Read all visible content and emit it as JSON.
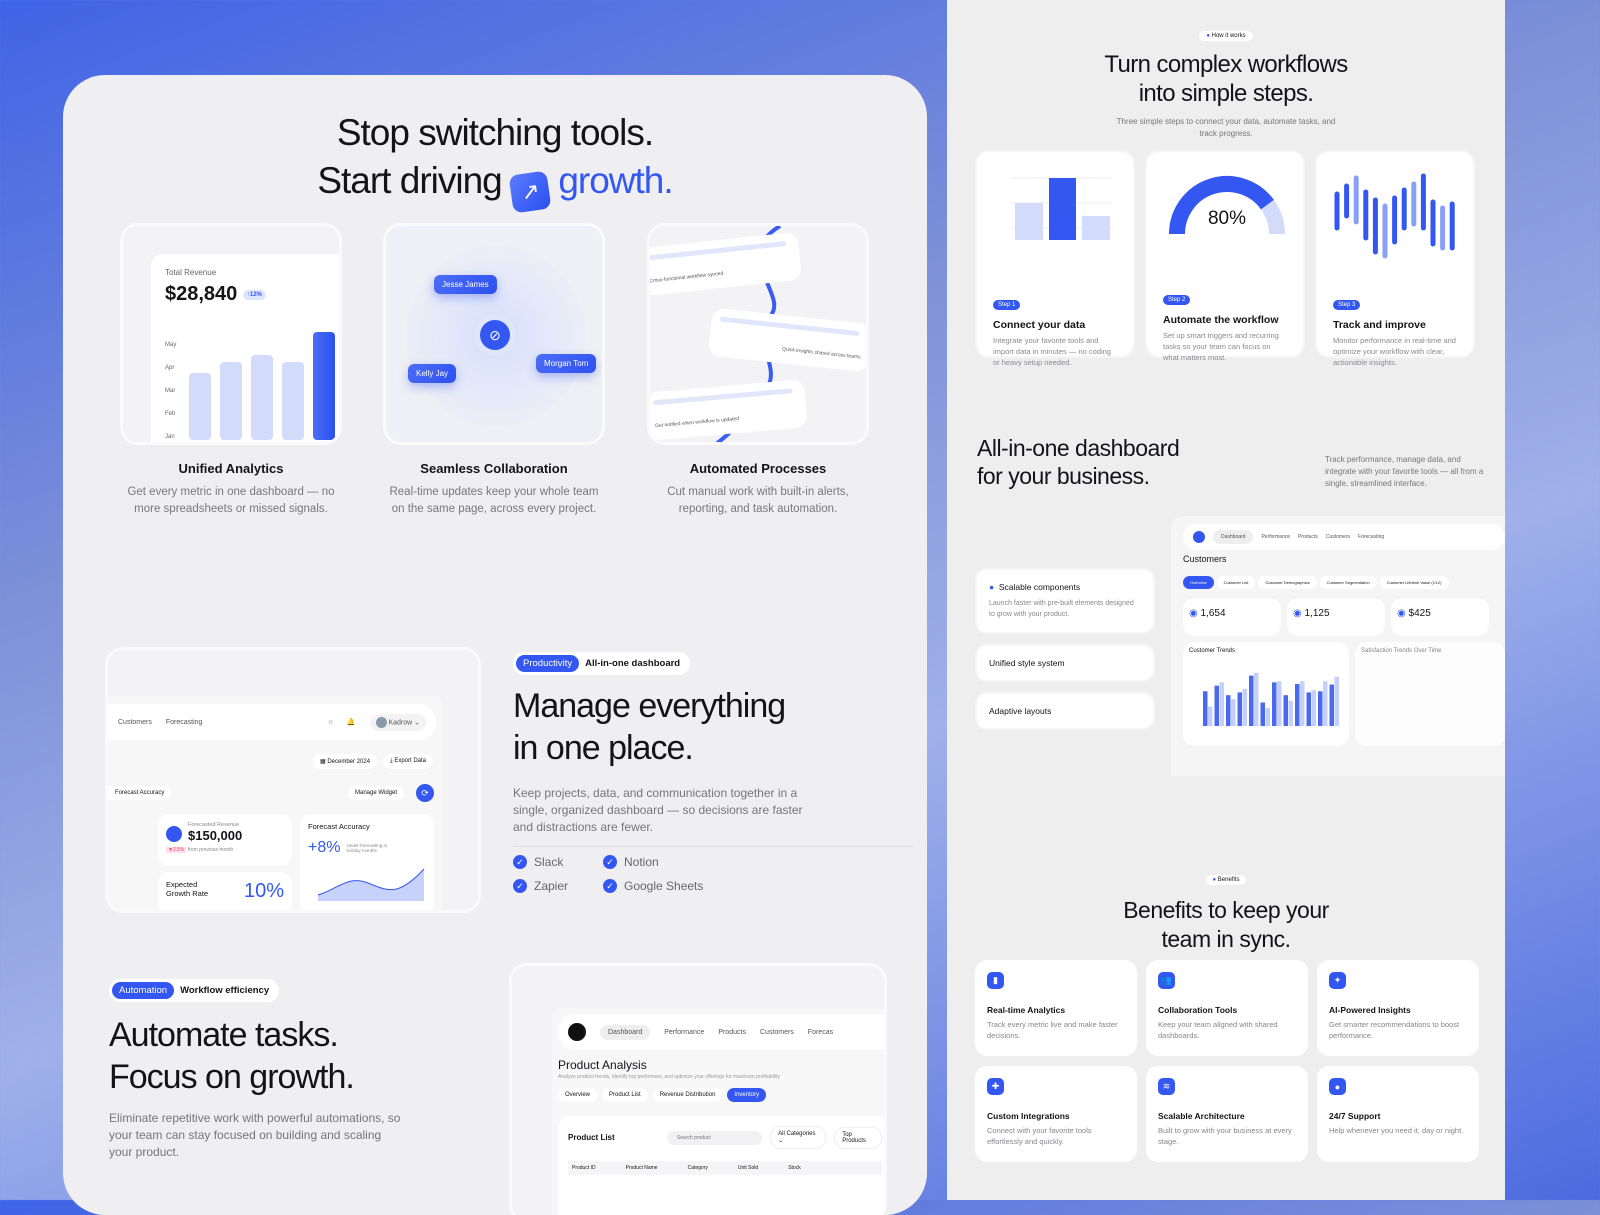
{
  "hero": {
    "line1": "Stop switching tools.",
    "line2_prefix": "Start driving",
    "line2_accent": "growth."
  },
  "features": [
    {
      "title": "Unified Analytics",
      "desc": "Get every metric in one dashboard — no more spreadsheets or missed signals."
    },
    {
      "title": "Seamless Collaboration",
      "desc": "Real-time updates keep your whole team on the same page, across every project."
    },
    {
      "title": "Automated Processes",
      "desc": "Cut manual work with built-in alerts, reporting, and task automation."
    }
  ],
  "revenue_card": {
    "label": "Total Revenue",
    "value": "$28,840",
    "badge": "↑12%",
    "months": [
      "May",
      "Apr",
      "Mar",
      "Feb",
      "Jan"
    ],
    "bars": [
      0.62,
      0.72,
      0.79,
      0.72,
      1.0
    ]
  },
  "collab": {
    "people": [
      "Jesse James",
      "Morgan Tom",
      "Kelly Jay"
    ]
  },
  "automation_cards": [
    "Cross-functional workflow synced",
    "Quick insights shared across teams",
    "Get notified when workflow is updated"
  ],
  "manage": {
    "badge": "Productivity",
    "badge_text": "All-in-one dashboard",
    "title_l1": "Manage everything",
    "title_l2": "in one place.",
    "desc": "Keep projects, data, and communication together in a single, organized dashboard — so decisions are faster and distractions are fewer.",
    "integrations": [
      "Slack",
      "Notion",
      "Zapier",
      "Google Sheets"
    ]
  },
  "dash1": {
    "nav": [
      "Customers",
      "Forecasting"
    ],
    "user": "Kadrow",
    "date": "December 2024",
    "export": "Export Data",
    "tab": "Forecast Accuracy",
    "manage_widget": "Manage Widget",
    "forecast_label": "Forecasted Revenue",
    "forecast_value": "$150,000",
    "forecast_change": "▼2.5%",
    "forecast_note": "from previous month",
    "accuracy_title": "Forecast Accuracy",
    "accuracy_value": "+8%",
    "accuracy_note": "Under-forecasting in holiday months",
    "growth_label": "Expected Growth Rate",
    "growth_value": "10%"
  },
  "automate": {
    "badge": "Automation",
    "badge_text": "Workflow efficiency",
    "title_l1": "Automate tasks.",
    "title_l2": "Focus on growth.",
    "desc": "Eliminate repetitive work with powerful automations, so your team can stay focused on building and scaling your product."
  },
  "dash2": {
    "nav": [
      "Dashboard",
      "Performance",
      "Products",
      "Customers",
      "Forecas"
    ],
    "title": "Product Analysis",
    "subtitle": "Analyze product trends, identify top performers, and optimize your offerings for maximum profitability",
    "tabs": [
      "Overview",
      "Product List",
      "Revenue Distribution",
      "Inventory"
    ],
    "list_title": "Product List",
    "search_placeholder": "Search product",
    "filter": "All Categories",
    "sort": "Top Products",
    "columns": [
      "Product ID",
      "Product Name",
      "Category",
      "Unit Sold",
      "Stock"
    ]
  },
  "how": {
    "badge": "How it works",
    "title_l1": "Turn complex workflows",
    "title_l2": "into simple steps.",
    "subtitle": "Three simple steps to connect your data, automate tasks, and track progress.",
    "steps": [
      {
        "badge": "Step 1",
        "title": "Connect your data",
        "desc": "Integrate your favorite tools and import data in minutes — no coding or heavy setup needed."
      },
      {
        "badge": "Step 2",
        "title": "Automate the workflow",
        "desc": "Set up smart triggers and recurring tasks so your team can focus on what matters most."
      },
      {
        "badge": "Step 3",
        "title": "Track and improve",
        "desc": "Monitor performance in real-time and optimize your workflow with clear, actionable insights."
      }
    ],
    "gauge": "80%",
    "gauge_value": 0.8
  },
  "allinone": {
    "title_l1": "All-in-one dashboard",
    "title_l2": "for your business.",
    "desc": "Track performance, manage data, and integrate with your favorite tools — all from a single, streamlined interface.",
    "features": [
      {
        "title": "Scalable components",
        "desc": "Launch faster with pre-built elements designed to grow with your product."
      },
      {
        "title": "Unified style system"
      },
      {
        "title": "Adaptive layouts"
      }
    ],
    "dash": {
      "nav": [
        "Dashboard",
        "Performance",
        "Products",
        "Customers",
        "Forecasting"
      ],
      "title": "Customers",
      "tabs": [
        "Overview",
        "Customer List",
        "Customer Demographics",
        "Customer Segmentation",
        "Customer Lifetime Value (CLV)"
      ],
      "stats": [
        "1,654",
        "1,125",
        "$425"
      ],
      "chart_title": "Customer Trends",
      "chart2_title": "Satisfaction Trends Over Time"
    }
  },
  "benefits": {
    "badge": "Benefits",
    "title_l1": "Benefits to keep your",
    "title_l2": "team in sync.",
    "items": [
      {
        "icon": "bar-chart-icon",
        "glyph": "▮",
        "title": "Real-time Analytics",
        "desc": "Track every metric live and make faster decisions."
      },
      {
        "icon": "users-icon",
        "glyph": "👥",
        "title": "Collaboration Tools",
        "desc": "Keep your team aligned with shared dashboards."
      },
      {
        "icon": "sparkle-icon",
        "glyph": "✦",
        "title": "AI-Powered Insights",
        "desc": "Get smarter recommendations to boost performance."
      },
      {
        "icon": "puzzle-icon",
        "glyph": "✚",
        "title": "Custom Integrations",
        "desc": "Connect with your favorite tools effortlessly and quickly."
      },
      {
        "icon": "layers-icon",
        "glyph": "≋",
        "title": "Scalable Architecture",
        "desc": "Built to grow with your business at every stage."
      },
      {
        "icon": "chat-icon",
        "glyph": "●",
        "title": "24/7 Support",
        "desc": "Help whenever you need it, day or night."
      }
    ]
  },
  "colors": {
    "accent": "#3357f0"
  }
}
